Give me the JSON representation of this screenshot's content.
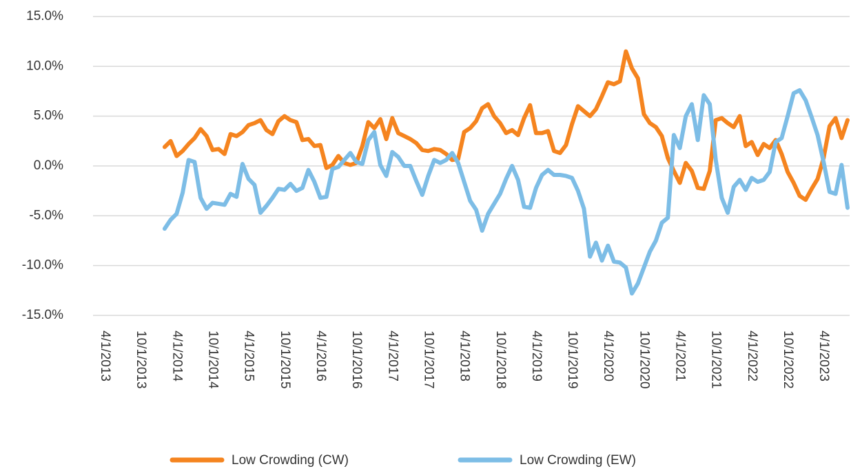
{
  "chart_data": {
    "type": "line",
    "categories": [
      "4/1/2013",
      null,
      null,
      null,
      null,
      null,
      "10/1/2013",
      null,
      null,
      null,
      null,
      null,
      "4/1/2014",
      null,
      null,
      null,
      null,
      null,
      "10/1/2014",
      null,
      null,
      null,
      null,
      null,
      "4/1/2015",
      null,
      null,
      null,
      null,
      null,
      "10/1/2015",
      null,
      null,
      null,
      null,
      null,
      "4/1/2016",
      null,
      null,
      null,
      null,
      null,
      "10/1/2016",
      null,
      null,
      null,
      null,
      null,
      "4/1/2017",
      null,
      null,
      null,
      null,
      null,
      "10/1/2017",
      null,
      null,
      null,
      null,
      null,
      "4/1/2018",
      null,
      null,
      null,
      null,
      null,
      "10/1/2018",
      null,
      null,
      null,
      null,
      null,
      "4/1/2019",
      null,
      null,
      null,
      null,
      null,
      "10/1/2019",
      null,
      null,
      null,
      null,
      null,
      "4/1/2020",
      null,
      null,
      null,
      null,
      null,
      "10/1/2020",
      null,
      null,
      null,
      null,
      null,
      "4/1/2021",
      null,
      null,
      null,
      null,
      null,
      "10/1/2021",
      null,
      null,
      null,
      null,
      null,
      "4/1/2022",
      null,
      null,
      null,
      null,
      null,
      "10/1/2022",
      null,
      null,
      null,
      null,
      null,
      "4/1/2023",
      null,
      null,
      null,
      null
    ],
    "series": [
      {
        "name": "Low Crowding (CW)",
        "color": "#f5841f",
        "values": [
          null,
          null,
          null,
          null,
          null,
          null,
          null,
          null,
          null,
          null,
          1.9,
          2.5,
          1.0,
          1.5,
          2.2,
          2.8,
          3.7,
          3.0,
          1.6,
          1.7,
          1.2,
          3.2,
          3.0,
          3.4,
          4.1,
          4.3,
          4.6,
          3.6,
          3.2,
          4.5,
          5.0,
          4.6,
          4.4,
          2.6,
          2.7,
          2.0,
          2.1,
          -0.2,
          0.1,
          1.0,
          0.3,
          0.1,
          0.3,
          2.0,
          4.4,
          3.8,
          4.7,
          2.7,
          4.8,
          3.3,
          3.0,
          2.7,
          2.3,
          1.6,
          1.5,
          1.7,
          1.6,
          1.2,
          0.6,
          0.7,
          3.4,
          3.8,
          4.5,
          5.8,
          6.2,
          5.0,
          4.3,
          3.3,
          3.6,
          3.1,
          4.8,
          6.1,
          3.3,
          3.3,
          3.5,
          1.5,
          1.3,
          2.1,
          4.2,
          6.0,
          5.5,
          5.0,
          5.7,
          7.0,
          8.4,
          8.2,
          8.5,
          11.5,
          9.8,
          8.8,
          5.2,
          4.3,
          3.9,
          3.0,
          0.8,
          -0.5,
          -1.7,
          0.3,
          -0.5,
          -2.2,
          -2.3,
          -0.5,
          4.6,
          4.8,
          4.3,
          3.9,
          5.0,
          2.0,
          2.4,
          1.1,
          2.2,
          1.8,
          2.6,
          1.2,
          -0.6,
          -1.7,
          -3.0,
          -3.4,
          -2.3,
          -1.3,
          0.8,
          4.0,
          4.8,
          2.8,
          4.6
        ]
      },
      {
        "name": "Low Crowding (EW)",
        "color": "#7dbde6",
        "values": [
          null,
          null,
          null,
          null,
          null,
          null,
          null,
          null,
          null,
          null,
          -6.3,
          -5.4,
          -4.8,
          -2.7,
          0.6,
          0.4,
          -3.2,
          -4.3,
          -3.7,
          -3.8,
          -3.9,
          -2.8,
          -3.1,
          0.2,
          -1.3,
          -1.9,
          -4.7,
          -4.0,
          -3.2,
          -2.3,
          -2.4,
          -1.8,
          -2.5,
          -2.2,
          -0.4,
          -1.6,
          -3.2,
          -3.1,
          -0.3,
          -0.1,
          0.6,
          1.3,
          0.4,
          0.2,
          2.6,
          3.4,
          0.1,
          -1.0,
          1.4,
          0.9,
          0.0,
          0.0,
          -1.5,
          -2.9,
          -1.0,
          0.6,
          0.3,
          0.6,
          1.3,
          0.3,
          -1.6,
          -3.5,
          -4.4,
          -6.5,
          -4.8,
          -3.8,
          -2.8,
          -1.3,
          0.0,
          -1.4,
          -4.1,
          -4.2,
          -2.2,
          -0.9,
          -0.4,
          -0.9,
          -0.9,
          -1.0,
          -1.2,
          -2.5,
          -4.3,
          -9.1,
          -7.7,
          -9.5,
          -8.0,
          -9.6,
          -9.7,
          -10.2,
          -12.8,
          -11.8,
          -10.2,
          -8.6,
          -7.5,
          -5.7,
          -5.2,
          3.1,
          1.8,
          5.0,
          6.2,
          2.6,
          7.1,
          6.2,
          0.6,
          -3.2,
          -4.7,
          -2.1,
          -1.4,
          -2.4,
          -1.2,
          -1.6,
          -1.4,
          -0.6,
          2.4,
          2.8,
          5.0,
          7.3,
          7.6,
          6.6,
          4.9,
          3.1,
          0.4,
          -2.6,
          -2.8,
          0.1,
          -4.2
        ]
      }
    ],
    "ylim": [
      -15,
      15
    ],
    "yticks": [
      {
        "value": -15,
        "label": "-15.0%"
      },
      {
        "value": -10,
        "label": "-10.0%"
      },
      {
        "value": -5,
        "label": "-5.0%"
      },
      {
        "value": 0,
        "label": "0.0%"
      },
      {
        "value": 5,
        "label": "5.0%"
      },
      {
        "value": 10,
        "label": "10.0%"
      },
      {
        "value": 15,
        "label": "15.0%"
      }
    ],
    "grid": true,
    "legend": "bottom"
  }
}
